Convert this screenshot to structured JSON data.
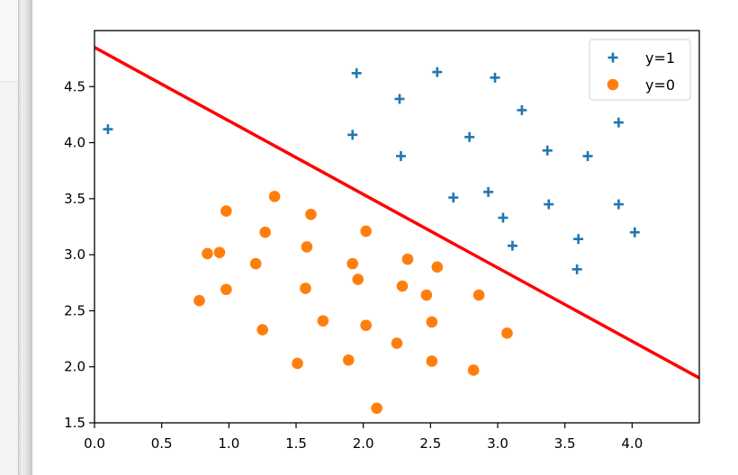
{
  "chart_data": {
    "type": "scatter",
    "xlim": [
      0.0,
      4.5
    ],
    "ylim": [
      1.5,
      5.0
    ],
    "x_ticks": [
      0.0,
      0.5,
      1.0,
      1.5,
      2.0,
      2.5,
      3.0,
      3.5,
      4.0
    ],
    "y_ticks": [
      1.5,
      2.0,
      2.5,
      3.0,
      3.5,
      4.0,
      4.5
    ],
    "x_tick_labels": [
      "0.0",
      "0.5",
      "1.0",
      "1.5",
      "2.0",
      "2.5",
      "3.0",
      "3.5",
      "4.0"
    ],
    "y_tick_labels": [
      "1.5",
      "2.0",
      "2.5",
      "3.0",
      "3.5",
      "4.0",
      "4.5"
    ],
    "grid": false,
    "legend_position": "top-right",
    "series": [
      {
        "name": "y=1",
        "marker": "plus",
        "color": "#1f77b4",
        "points": [
          [
            0.1,
            4.12
          ],
          [
            1.95,
            4.62
          ],
          [
            2.55,
            4.63
          ],
          [
            2.98,
            4.58
          ],
          [
            2.27,
            4.39
          ],
          [
            3.18,
            4.29
          ],
          [
            3.9,
            4.18
          ],
          [
            1.92,
            4.07
          ],
          [
            2.79,
            4.05
          ],
          [
            3.37,
            3.93
          ],
          [
            3.67,
            3.88
          ],
          [
            2.28,
            3.88
          ],
          [
            2.67,
            3.51
          ],
          [
            2.93,
            3.56
          ],
          [
            3.38,
            3.45
          ],
          [
            3.9,
            3.45
          ],
          [
            3.04,
            3.33
          ],
          [
            4.02,
            3.2
          ],
          [
            3.6,
            3.14
          ],
          [
            3.11,
            3.08
          ],
          [
            3.59,
            2.87
          ]
        ]
      },
      {
        "name": "y=0",
        "marker": "circle",
        "color": "#ff7f0e",
        "points": [
          [
            1.34,
            3.52
          ],
          [
            0.98,
            3.39
          ],
          [
            1.61,
            3.36
          ],
          [
            1.27,
            3.2
          ],
          [
            2.02,
            3.21
          ],
          [
            1.58,
            3.07
          ],
          [
            0.84,
            3.01
          ],
          [
            0.93,
            3.02
          ],
          [
            2.33,
            2.96
          ],
          [
            1.2,
            2.92
          ],
          [
            1.92,
            2.92
          ],
          [
            2.55,
            2.89
          ],
          [
            1.96,
            2.78
          ],
          [
            2.29,
            2.72
          ],
          [
            0.98,
            2.69
          ],
          [
            1.57,
            2.7
          ],
          [
            2.47,
            2.64
          ],
          [
            2.86,
            2.64
          ],
          [
            0.78,
            2.59
          ],
          [
            1.7,
            2.41
          ],
          [
            2.51,
            2.4
          ],
          [
            2.02,
            2.37
          ],
          [
            1.25,
            2.33
          ],
          [
            3.07,
            2.3
          ],
          [
            2.25,
            2.21
          ],
          [
            1.51,
            2.03
          ],
          [
            1.89,
            2.06
          ],
          [
            2.51,
            2.05
          ],
          [
            2.82,
            1.97
          ],
          [
            2.1,
            1.63
          ]
        ]
      }
    ],
    "decision_boundary": {
      "color": "#ff0000",
      "points": [
        [
          0.0,
          4.85
        ],
        [
          4.5,
          1.9
        ]
      ]
    },
    "legend": {
      "entries": [
        "y=1",
        "y=0"
      ]
    }
  }
}
